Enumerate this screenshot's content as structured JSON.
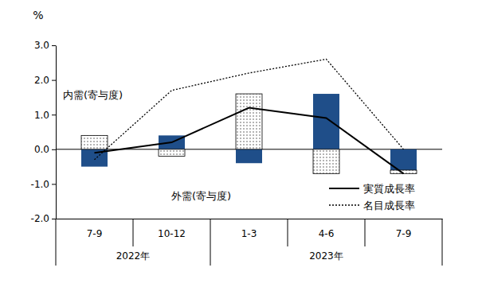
{
  "chart_data": {
    "type": "bar",
    "y_label": "%",
    "categories": [
      "7-9",
      "10-12",
      "1-3",
      "4-6",
      "7-9"
    ],
    "x_groups": [
      "2022年",
      "2022年",
      "2023年",
      "2023年",
      "2023年"
    ],
    "ylim": [
      -2,
      3
    ],
    "yticks": [
      {
        "value": -2,
        "label": "-2.0"
      },
      {
        "value": -1,
        "label": "-1.0"
      },
      {
        "value": 0,
        "label": "0.0"
      },
      {
        "value": 1,
        "label": "1.0"
      },
      {
        "value": 2,
        "label": "2.0"
      },
      {
        "value": 3,
        "label": "3.0"
      }
    ],
    "stacked": true,
    "legend": "lower right",
    "series": [
      {
        "name": "外需(寄与度)",
        "type": "bar",
        "color": "#1f4e89",
        "values": [
          -0.5,
          0.4,
          -0.4,
          1.6,
          -0.6
        ]
      },
      {
        "name": "内需(寄与度)",
        "type": "bar",
        "color": "#333333",
        "marker": "dots",
        "values": [
          0.4,
          -0.2,
          1.6,
          -0.7,
          -0.1
        ]
      },
      {
        "name": "実質成長率",
        "type": "line",
        "color": "#000000",
        "line_style": "solid",
        "values": [
          -0.1,
          0.2,
          1.2,
          0.9,
          -0.7
        ]
      },
      {
        "name": "名目成長率",
        "type": "line",
        "color": "#000000",
        "line_style": "dotted",
        "values": [
          -0.3,
          1.7,
          2.2,
          2.6,
          0.0
        ]
      }
    ]
  }
}
